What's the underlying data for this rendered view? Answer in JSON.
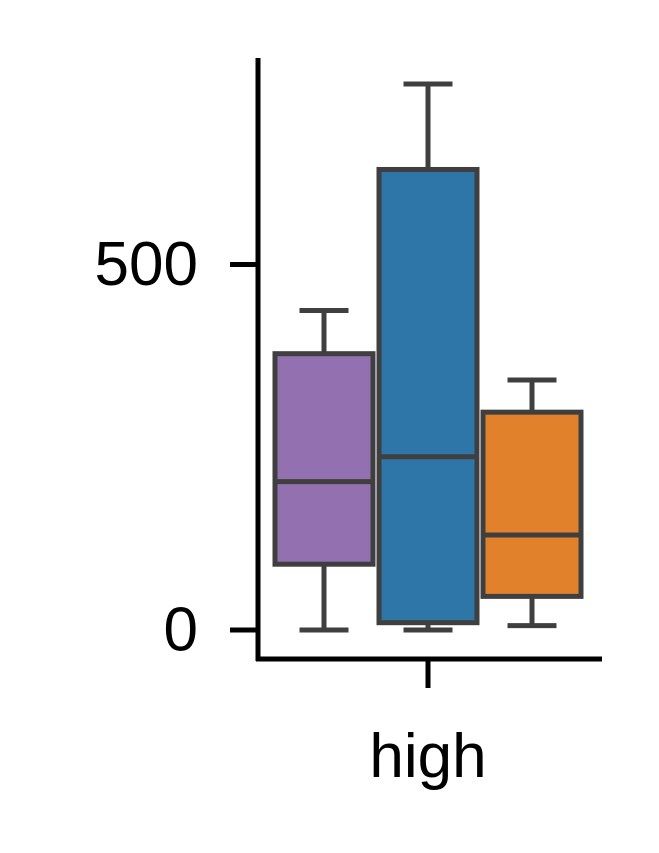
{
  "chart_data": {
    "type": "box",
    "categories": [
      "high"
    ],
    "x_tick_labels": [
      "high"
    ],
    "y_tick_labels": [
      "500",
      "0"
    ],
    "y_ticks": [
      500,
      0
    ],
    "ylim": [
      -40,
      780
    ],
    "grid": false,
    "legend": "none",
    "series": [
      {
        "color": "#9370b0",
        "values": [
          {
            "whisker_low": 0,
            "q1": 90,
            "median": 203,
            "q3": 378,
            "whisker_high": 437
          }
        ]
      },
      {
        "color": "#2e75a8",
        "values": [
          {
            "whisker_low": 0,
            "q1": 10,
            "median": 237,
            "q3": 630,
            "whisker_high": 747
          }
        ]
      },
      {
        "color": "#e1812c",
        "values": [
          {
            "whisker_low": 6,
            "q1": 46,
            "median": 130,
            "q3": 298,
            "whisker_high": 342
          }
        ]
      }
    ]
  }
}
